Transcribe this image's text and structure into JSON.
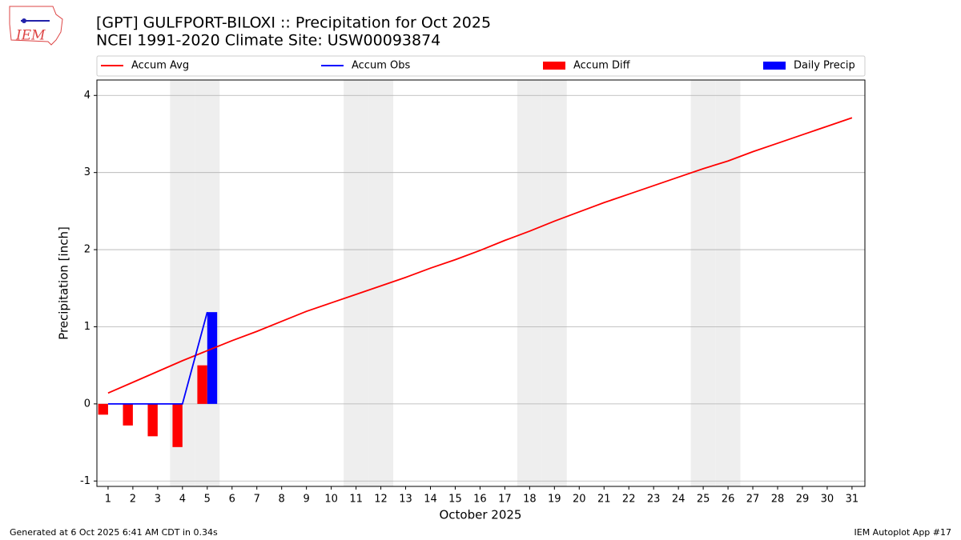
{
  "chart_data": {
    "type": "line_bar",
    "logo": "IEM",
    "title": "[GPT] GULFPORT-BILOXI :: Precipitation for Oct 2025",
    "subtitle": "NCEI 1991-2020 Climate Site: USW00093874",
    "ylabel": "Precipitation [inch]",
    "xlabel": "October 2025",
    "footer_left": "Generated at 6 Oct 2025 6:41 AM CDT in 0.34s",
    "footer_right": "IEM Autoplot App #17",
    "x": [
      1,
      2,
      3,
      4,
      5,
      6,
      7,
      8,
      9,
      10,
      11,
      12,
      13,
      14,
      15,
      16,
      17,
      18,
      19,
      20,
      21,
      22,
      23,
      24,
      25,
      26,
      27,
      28,
      29,
      30,
      31
    ],
    "xlim": [
      0.55,
      31.52
    ],
    "xticks": [
      1,
      2,
      3,
      4,
      5,
      6,
      7,
      8,
      9,
      10,
      11,
      12,
      13,
      14,
      15,
      16,
      17,
      18,
      19,
      20,
      21,
      22,
      23,
      24,
      25,
      26,
      27,
      28,
      29,
      30,
      31
    ],
    "ylim": [
      -1.07,
      4.2
    ],
    "yticks": [
      -1,
      0,
      1,
      2,
      3,
      4
    ],
    "grid": true,
    "weekend_days": [
      4,
      5,
      11,
      12,
      18,
      19,
      25,
      26
    ],
    "series": [
      {
        "name": "Accum Avg",
        "kind": "line",
        "color": "#ff0000",
        "values": [
          0.14,
          0.28,
          0.42,
          0.56,
          0.69,
          0.82,
          0.94,
          1.07,
          1.2,
          1.31,
          1.42,
          1.53,
          1.64,
          1.76,
          1.87,
          1.99,
          2.12,
          2.24,
          2.37,
          2.49,
          2.61,
          2.72,
          2.83,
          2.94,
          3.05,
          3.15,
          3.27,
          3.38,
          3.49,
          3.6,
          3.71
        ]
      },
      {
        "name": "Accum Obs",
        "kind": "line",
        "color": "#0000ff",
        "values": [
          0,
          0,
          0,
          0,
          1.19,
          null,
          null,
          null,
          null,
          null,
          null,
          null,
          null,
          null,
          null,
          null,
          null,
          null,
          null,
          null,
          null,
          null,
          null,
          null,
          null,
          null,
          null,
          null,
          null,
          null,
          null
        ]
      },
      {
        "name": "Accum Diff",
        "kind": "bar",
        "side": "left",
        "color": "#ff0000",
        "values": [
          -0.14,
          -0.28,
          -0.42,
          -0.56,
          0.5,
          null,
          null,
          null,
          null,
          null,
          null,
          null,
          null,
          null,
          null,
          null,
          null,
          null,
          null,
          null,
          null,
          null,
          null,
          null,
          null,
          null,
          null,
          null,
          null,
          null,
          null
        ]
      },
      {
        "name": "Daily Precip",
        "kind": "bar",
        "side": "right",
        "color": "#0000ff",
        "values": [
          0,
          0,
          0,
          0,
          1.19,
          null,
          null,
          null,
          null,
          null,
          null,
          null,
          null,
          null,
          null,
          null,
          null,
          null,
          null,
          null,
          null,
          null,
          null,
          null,
          null,
          null,
          null,
          null,
          null,
          null,
          null
        ]
      }
    ]
  }
}
